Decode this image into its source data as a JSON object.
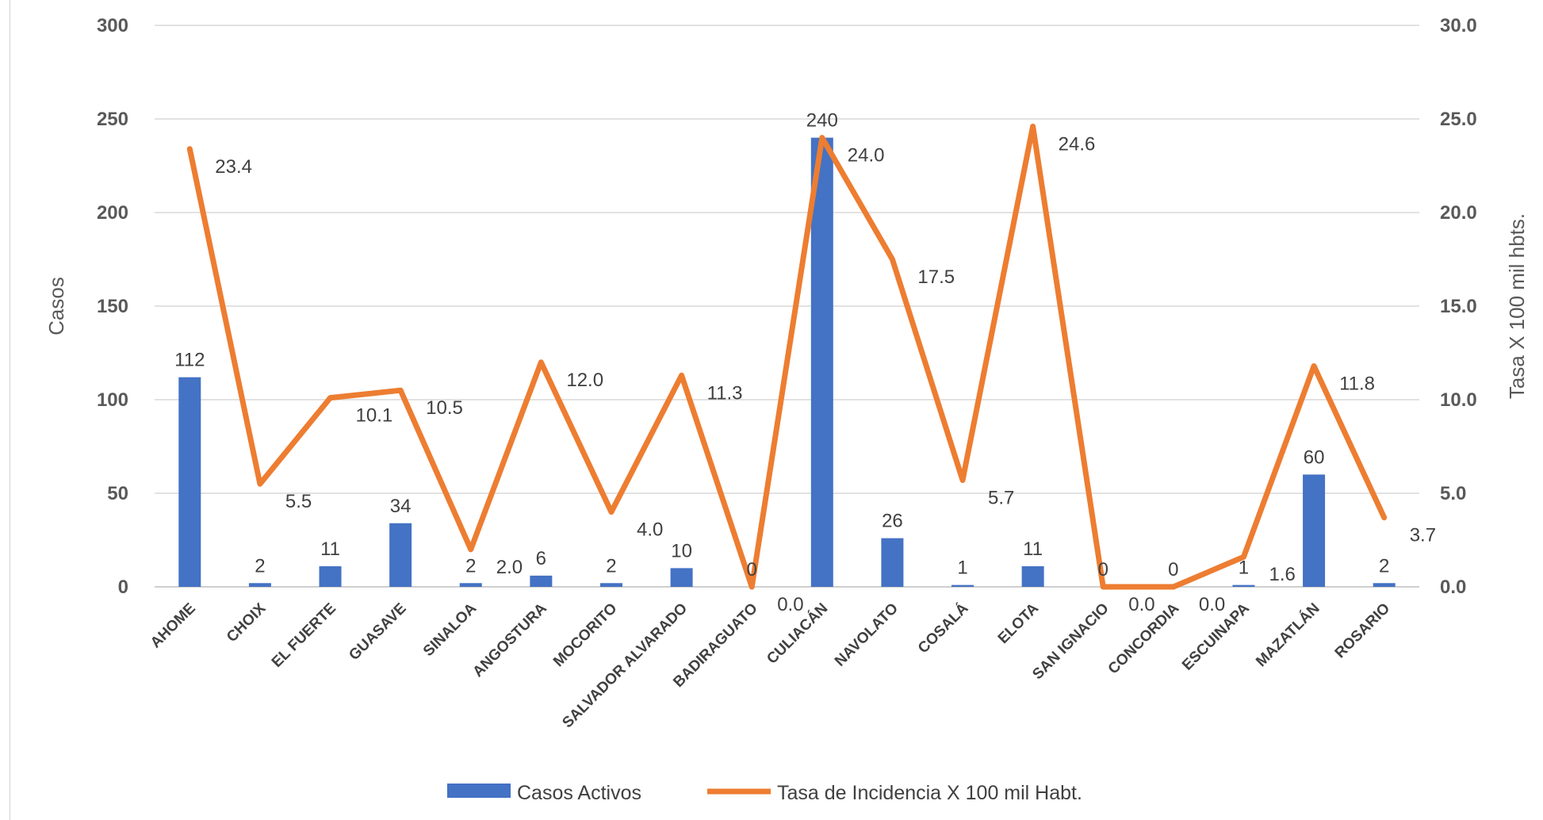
{
  "chart_data": {
    "type": "bar",
    "categories": [
      "AHOME",
      "CHOIX",
      "EL FUERTE",
      "GUASAVE",
      "SINALOA",
      "ANGOSTURA",
      "MOCORITO",
      "SALVADOR ALVARADO",
      "BADIRAGUATO",
      "CULIACÁN",
      "NAVOLATO",
      "COSALÁ",
      "ELOTA",
      "SAN IGNACIO",
      "CONCORDIA",
      "ESCUINAPA",
      "MAZATLÁN",
      "ROSARIO"
    ],
    "series": [
      {
        "name": "Casos Activos",
        "type": "bar",
        "axis": "left",
        "color": "#4472C4",
        "values": [
          112,
          2,
          11,
          34,
          2,
          6,
          2,
          10,
          0,
          240,
          26,
          1,
          11,
          0,
          0,
          1,
          60,
          2
        ],
        "labels": [
          "112",
          "2",
          "11",
          "34",
          "2",
          "6",
          "2",
          "10",
          "0",
          "240",
          "26",
          "1",
          "11",
          "0",
          "0",
          "1",
          "60",
          "2"
        ]
      },
      {
        "name": "Tasa de Incidencia X 100 mil Habt.",
        "type": "line",
        "axis": "right",
        "color": "#ED7D31",
        "values": [
          23.4,
          5.5,
          10.1,
          10.5,
          2.0,
          12.0,
          4.0,
          11.3,
          0.0,
          24.0,
          17.5,
          5.7,
          24.6,
          0.0,
          0.0,
          1.6,
          11.8,
          3.7
        ],
        "labels": [
          "23.4",
          "5.5",
          "10.1",
          "10.5",
          "2.0",
          "12.0",
          "4.0",
          "11.3",
          "0.0",
          "24.0",
          "17.5",
          "5.7",
          "24.6",
          "0.0",
          "0.0",
          "1.6",
          "11.8",
          "3.7"
        ]
      }
    ],
    "ylabel": "Casos",
    "y2label": "Tasa X 100 mil hbts.",
    "ylim": [
      0,
      300
    ],
    "y2lim": [
      0,
      30
    ],
    "yticks": [
      "0",
      "50",
      "100",
      "150",
      "200",
      "250",
      "300"
    ],
    "y2ticks": [
      "0.0",
      "5.0",
      "10.0",
      "15.0",
      "20.0",
      "25.0",
      "30.0"
    ],
    "grid": true,
    "legend": "bottom"
  }
}
